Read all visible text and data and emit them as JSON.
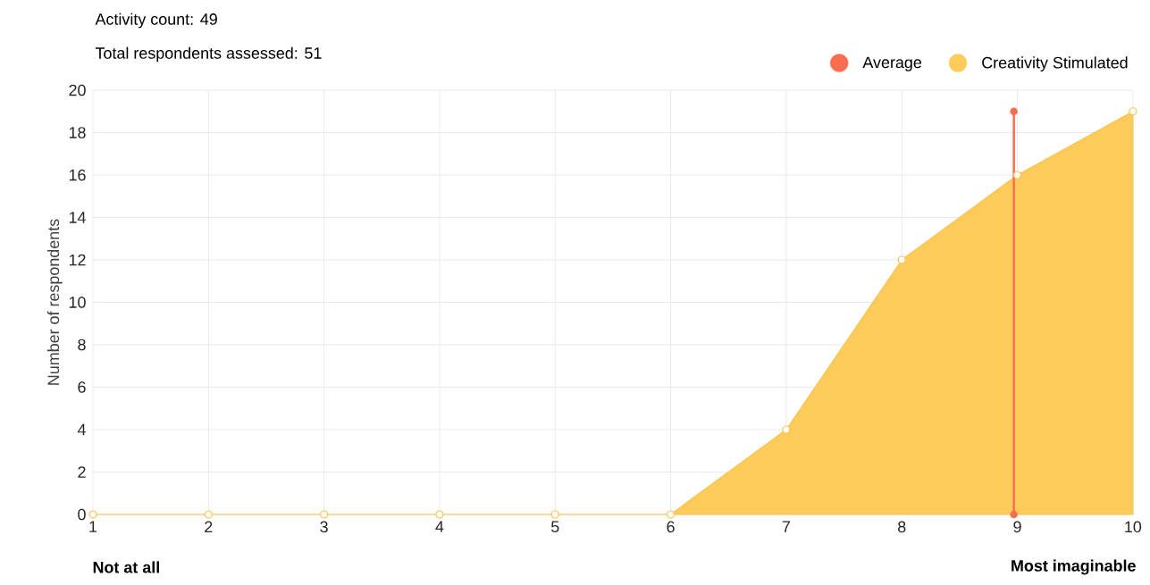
{
  "chart_data": {
    "type": "area",
    "annotations": [
      "Activity count: 49",
      "Total respondents assessed: 51",
      "Not at all",
      "Most imaginable"
    ],
    "ylabel": "Number of respondents",
    "x": [
      1,
      2,
      3,
      4,
      5,
      6,
      7,
      8,
      9,
      10
    ],
    "series": [
      {
        "name": "Average",
        "type": "line",
        "color": "#fa6e50",
        "x": [
          8.97,
          8.97
        ],
        "values": [
          0,
          19
        ]
      },
      {
        "name": "Creativity Stimulated",
        "color": "#fdcb5a",
        "values": [
          0,
          0,
          0,
          0,
          0,
          0,
          4,
          12,
          16,
          19
        ]
      }
    ],
    "xlim": [
      1,
      10
    ],
    "xticks": [
      1,
      2,
      3,
      4,
      5,
      6,
      7,
      8,
      9,
      10
    ],
    "ylim": [
      0,
      20
    ],
    "yticks": [
      0,
      2,
      4,
      6,
      8,
      10,
      12,
      14,
      16,
      18,
      20
    ],
    "grid": true,
    "legend": "top right",
    "marker": "circle"
  }
}
